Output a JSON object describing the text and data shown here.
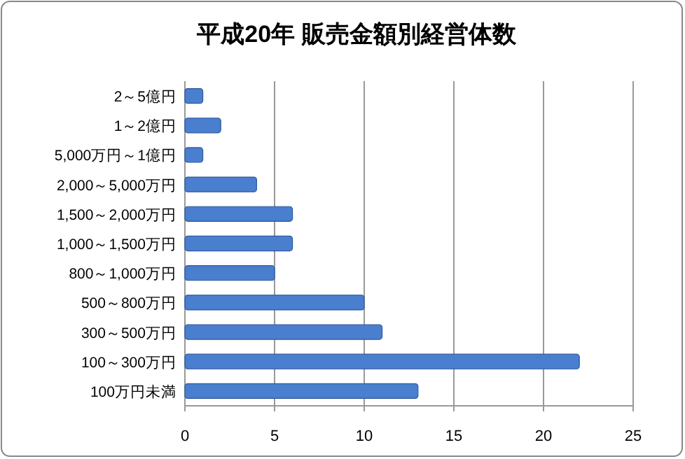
{
  "chart_data": {
    "type": "bar",
    "orientation": "horizontal",
    "title": "平成20年  販売金額別経営体数",
    "categories": [
      "2～5億円",
      "1～2億円",
      "5,000万円～1億円",
      "2,000～5,000万円",
      "1,500～2,000万円",
      "1,000～1,500万円",
      "800～1,000万円",
      "500～800万円",
      "300～500万円",
      "100～300万円",
      "100万円未満"
    ],
    "values": [
      1,
      2,
      1,
      4,
      6,
      6,
      5,
      10,
      11,
      22,
      13
    ],
    "color": "#4a7ecf",
    "xlim": [
      0,
      25
    ],
    "xticks": [
      0,
      5,
      10,
      15,
      20,
      25
    ],
    "grid": "x"
  }
}
